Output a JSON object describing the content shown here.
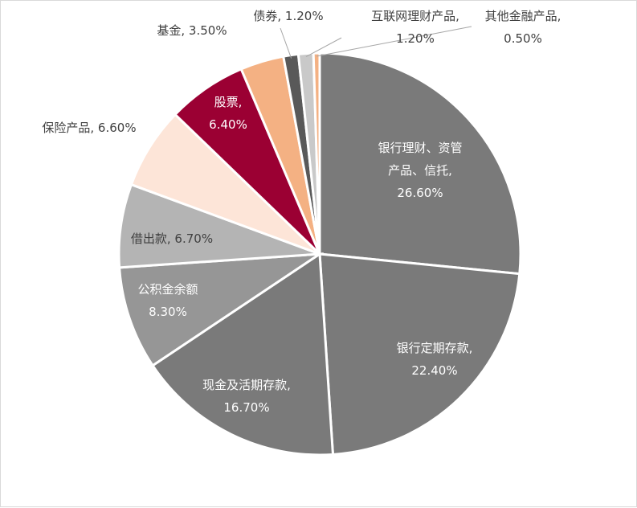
{
  "chart_data": {
    "type": "pie",
    "slices": [
      {
        "name": "银行理财、资管产品、信托",
        "value": 26.6,
        "lines": [
          "银行理财、资管",
          "产品、信托,",
          "26.60%"
        ],
        "color": "#7a7a7a",
        "label_color": "#ffffff",
        "label_side": "inside"
      },
      {
        "name": "银行定期存款",
        "value": 22.4,
        "lines": [
          "银行定期存款,",
          "22.40%"
        ],
        "color": "#7a7a7a",
        "label_color": "#ffffff",
        "label_side": "inside"
      },
      {
        "name": "现金及活期存款",
        "value": 16.7,
        "lines": [
          "现金及活期存款,",
          "16.70%"
        ],
        "color": "#7a7a7a",
        "label_color": "#ffffff",
        "label_side": "inside"
      },
      {
        "name": "公积金余额",
        "value": 8.3,
        "lines": [
          "公积金余额",
          "8.30%"
        ],
        "color": "#969696",
        "label_color": "#ffffff",
        "label_side": "inside"
      },
      {
        "name": "借出款",
        "value": 6.7,
        "lines": [
          "借出款, 6.70%"
        ],
        "color": "#b4b4b4",
        "label_color": "#404040",
        "label_side": "inside"
      },
      {
        "name": "保险产品",
        "value": 6.6,
        "lines": [
          "保险产品, 6.60%"
        ],
        "color": "#fde5d8",
        "label_color": "#404040",
        "label_side": "outside"
      },
      {
        "name": "股票",
        "value": 6.4,
        "lines": [
          "股票,",
          "6.40%"
        ],
        "color": "#9b0033",
        "label_color": "#ffffff",
        "label_side": "inside"
      },
      {
        "name": "基金",
        "value": 3.5,
        "lines": [
          "基金, 3.50%"
        ],
        "color": "#f4b183",
        "label_color": "#404040",
        "label_side": "outside"
      },
      {
        "name": "债券",
        "value": 1.2,
        "lines": [
          "债券, 1.20%"
        ],
        "color": "#595959",
        "label_color": "#404040",
        "label_side": "outside"
      },
      {
        "name": "互联网理财产品",
        "value": 1.2,
        "lines": [
          "互联网理财产品,",
          "1.20%"
        ],
        "color": "#c9c9c9",
        "label_color": "#404040",
        "label_side": "outside"
      },
      {
        "name": "其他金融产品",
        "value": 0.5,
        "lines": [
          "其他金融产品,",
          "0.50%"
        ],
        "color": "#f4b183",
        "label_color": "#404040",
        "label_side": "outside"
      }
    ],
    "start_angle_deg": 0,
    "direction": "clockwise",
    "legend": "none"
  }
}
